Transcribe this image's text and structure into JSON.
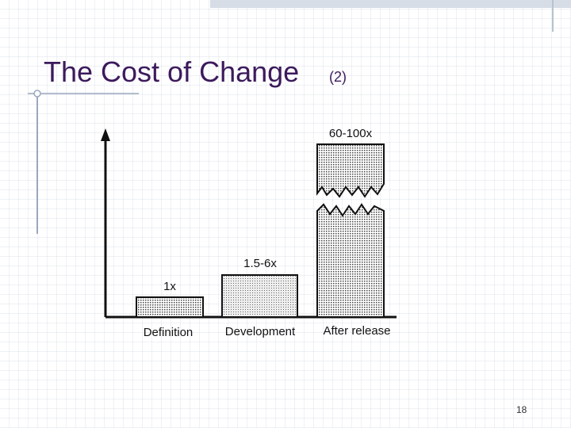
{
  "slide": {
    "title": "The Cost of Change",
    "title_note": "(2)",
    "page_number": "18"
  },
  "figure": {
    "bars": [
      {
        "category": "Definition",
        "label": "1x"
      },
      {
        "category": "Development",
        "label": "1.5-6x"
      },
      {
        "category": "After release",
        "label": "60-100x"
      }
    ]
  }
}
